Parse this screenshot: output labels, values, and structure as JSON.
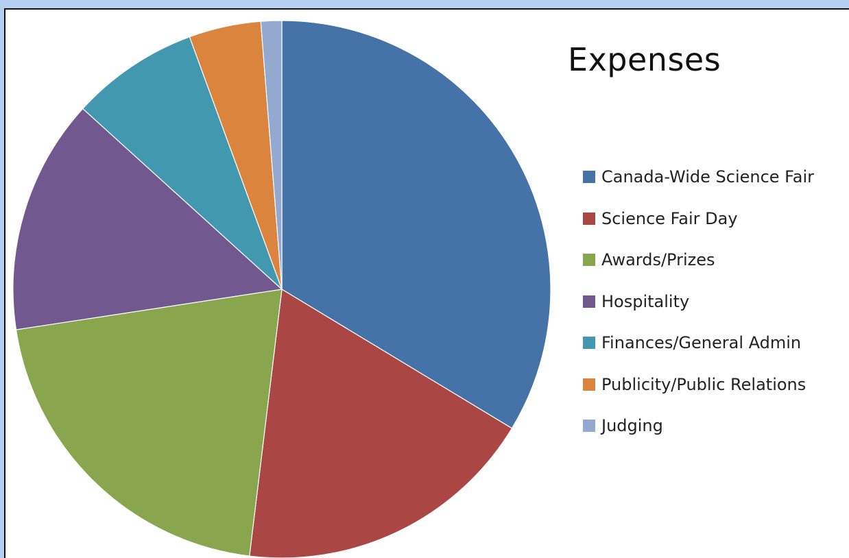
{
  "chart_data": {
    "type": "pie",
    "title": "Expenses",
    "legend_position": "right",
    "slices": [
      {
        "label": "Canada-Wide Science Fair",
        "value": 35.0,
        "color": "#4572a7"
      },
      {
        "label": "Science Fair Day",
        "value": 19.0,
        "color": "#aa4643"
      },
      {
        "label": "Awards/Prizes",
        "value": 21.5,
        "color": "#89a54e"
      },
      {
        "label": "Hospitality",
        "value": 14.7,
        "color": "#71588f"
      },
      {
        "label": "Finances/General Admin",
        "value": 8.0,
        "color": "#4198af"
      },
      {
        "label": "Publicity/Public Relations",
        "value": 4.5,
        "color": "#db843d"
      },
      {
        "label": "Judging",
        "value": 1.3,
        "color": "#93a9cf"
      }
    ]
  }
}
